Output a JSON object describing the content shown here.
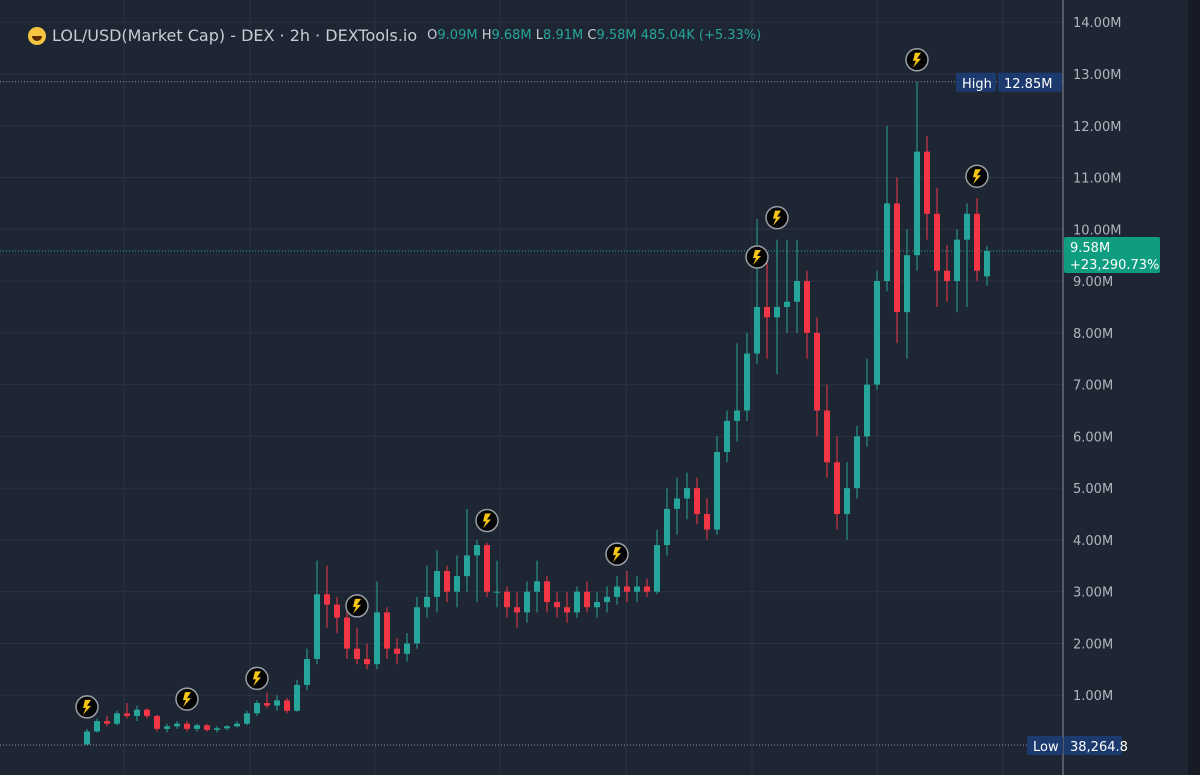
{
  "header": {
    "title": "LOL/USD(Market Cap) - DEX · 2h · DEXTools.io",
    "o_label": "O",
    "o": "9.09M",
    "h_label": "H",
    "h": "9.68M",
    "l_label": "L",
    "l": "8.91M",
    "c_label": "C",
    "c": "9.58M",
    "change": "485.04K (+5.33%)"
  },
  "colors": {
    "background": "#1e2533",
    "up": "#26a69a",
    "down": "#f23645",
    "grid": "#2b3242",
    "badge_high_low": "#1c3a6e",
    "last_price": "#0f9d80",
    "marker": "#f5c518"
  },
  "chart_data": {
    "type": "candlestick",
    "yticks": [
      "1.00M",
      "2.00M",
      "3.00M",
      "4.00M",
      "5.00M",
      "6.00M",
      "7.00M",
      "8.00M",
      "9.00M",
      "10.00M",
      "11.00M",
      "12.00M",
      "13.00M",
      "14.00M"
    ],
    "ylim": [
      0,
      14
    ],
    "unit": "M",
    "high_label": "High",
    "high_value": "12.85M",
    "low_label": "Low",
    "low_value": "38,264.8",
    "last_value": "9.58M",
    "last_change": "+23,290.73%",
    "grid": true,
    "markers": "lightning-icon events",
    "ohlc": [
      [
        0.05,
        0.35,
        0.04,
        0.3
      ],
      [
        0.3,
        0.55,
        0.28,
        0.5
      ],
      [
        0.5,
        0.6,
        0.4,
        0.45
      ],
      [
        0.45,
        0.7,
        0.42,
        0.65
      ],
      [
        0.65,
        0.85,
        0.55,
        0.6
      ],
      [
        0.6,
        0.8,
        0.5,
        0.72
      ],
      [
        0.72,
        0.75,
        0.55,
        0.6
      ],
      [
        0.6,
        0.62,
        0.3,
        0.35
      ],
      [
        0.35,
        0.45,
        0.28,
        0.4
      ],
      [
        0.4,
        0.5,
        0.35,
        0.45
      ],
      [
        0.45,
        0.5,
        0.3,
        0.35
      ],
      [
        0.35,
        0.45,
        0.3,
        0.42
      ],
      [
        0.42,
        0.45,
        0.3,
        0.33
      ],
      [
        0.33,
        0.4,
        0.28,
        0.36
      ],
      [
        0.36,
        0.42,
        0.32,
        0.4
      ],
      [
        0.4,
        0.5,
        0.38,
        0.45
      ],
      [
        0.45,
        0.7,
        0.42,
        0.65
      ],
      [
        0.65,
        0.9,
        0.6,
        0.85
      ],
      [
        0.85,
        1.05,
        0.75,
        0.8
      ],
      [
        0.8,
        1.0,
        0.7,
        0.9
      ],
      [
        0.9,
        0.95,
        0.65,
        0.7
      ],
      [
        0.7,
        1.3,
        0.68,
        1.2
      ],
      [
        1.2,
        1.9,
        1.1,
        1.7
      ],
      [
        1.7,
        3.6,
        1.6,
        2.95
      ],
      [
        2.95,
        3.5,
        2.3,
        2.75
      ],
      [
        2.75,
        2.9,
        2.2,
        2.5
      ],
      [
        2.5,
        2.75,
        1.7,
        1.9
      ],
      [
        1.9,
        2.3,
        1.6,
        1.7
      ],
      [
        1.7,
        2.0,
        1.5,
        1.6
      ],
      [
        1.6,
        3.2,
        1.5,
        2.6
      ],
      [
        2.6,
        2.7,
        1.7,
        1.9
      ],
      [
        1.9,
        2.1,
        1.6,
        1.8
      ],
      [
        1.8,
        2.2,
        1.65,
        2.0
      ],
      [
        2.0,
        2.9,
        1.9,
        2.7
      ],
      [
        2.7,
        3.5,
        2.5,
        2.9
      ],
      [
        2.9,
        3.8,
        2.6,
        3.4
      ],
      [
        3.4,
        3.5,
        2.8,
        3.0
      ],
      [
        3.0,
        3.7,
        2.7,
        3.3
      ],
      [
        3.3,
        4.6,
        3.0,
        3.7
      ],
      [
        3.7,
        4.0,
        2.8,
        3.9
      ],
      [
        3.9,
        3.95,
        2.9,
        3.0
      ],
      [
        3.0,
        3.6,
        2.7,
        3.0
      ],
      [
        3.0,
        3.1,
        2.5,
        2.7
      ],
      [
        2.7,
        3.0,
        2.3,
        2.6
      ],
      [
        2.6,
        3.2,
        2.4,
        3.0
      ],
      [
        3.0,
        3.6,
        2.6,
        3.2
      ],
      [
        3.2,
        3.3,
        2.6,
        2.8
      ],
      [
        2.8,
        3.0,
        2.5,
        2.7
      ],
      [
        2.7,
        3.0,
        2.4,
        2.6
      ],
      [
        2.6,
        3.1,
        2.5,
        3.0
      ],
      [
        3.0,
        3.2,
        2.6,
        2.7
      ],
      [
        2.7,
        3.0,
        2.5,
        2.8
      ],
      [
        2.8,
        3.1,
        2.6,
        2.9
      ],
      [
        2.9,
        3.3,
        2.75,
        3.1
      ],
      [
        3.1,
        3.4,
        2.8,
        3.0
      ],
      [
        3.0,
        3.3,
        2.8,
        3.1
      ],
      [
        3.1,
        3.25,
        2.9,
        3.0
      ],
      [
        3.0,
        4.2,
        2.95,
        3.9
      ],
      [
        3.9,
        5.0,
        3.7,
        4.6
      ],
      [
        4.6,
        5.2,
        4.1,
        4.8
      ],
      [
        4.8,
        5.3,
        4.4,
        5.0
      ],
      [
        5.0,
        5.2,
        4.3,
        4.5
      ],
      [
        4.5,
        4.8,
        4.0,
        4.2
      ],
      [
        4.2,
        6.0,
        4.1,
        5.7
      ],
      [
        5.7,
        6.5,
        5.5,
        6.3
      ],
      [
        6.3,
        7.8,
        5.9,
        6.5
      ],
      [
        6.5,
        8.0,
        6.3,
        7.6
      ],
      [
        7.6,
        10.2,
        7.4,
        8.5
      ],
      [
        8.5,
        9.5,
        7.5,
        8.3
      ],
      [
        8.3,
        9.8,
        7.2,
        8.5
      ],
      [
        8.5,
        9.8,
        8.0,
        8.6
      ],
      [
        8.6,
        9.8,
        8.0,
        9.0
      ],
      [
        9.0,
        9.2,
        7.5,
        8.0
      ],
      [
        8.0,
        8.3,
        6.0,
        6.5
      ],
      [
        6.5,
        7.0,
        5.2,
        5.5
      ],
      [
        5.5,
        6.0,
        4.2,
        4.5
      ],
      [
        4.5,
        5.5,
        4.0,
        5.0
      ],
      [
        5.0,
        6.2,
        4.8,
        6.0
      ],
      [
        6.0,
        7.5,
        5.8,
        7.0
      ],
      [
        7.0,
        9.2,
        6.9,
        9.0
      ],
      [
        9.0,
        12.0,
        8.8,
        10.5
      ],
      [
        10.5,
        11.0,
        7.8,
        8.4
      ],
      [
        8.4,
        10.0,
        7.5,
        9.5
      ],
      [
        9.5,
        12.85,
        9.2,
        11.5
      ],
      [
        11.5,
        11.8,
        9.8,
        10.3
      ],
      [
        10.3,
        10.8,
        8.5,
        9.2
      ],
      [
        9.2,
        9.7,
        8.6,
        9.0
      ],
      [
        9.0,
        10.0,
        8.4,
        9.8
      ],
      [
        9.8,
        10.5,
        8.5,
        10.3
      ],
      [
        10.3,
        10.6,
        9.0,
        9.2
      ],
      [
        9.09,
        9.68,
        8.91,
        9.58
      ]
    ]
  }
}
